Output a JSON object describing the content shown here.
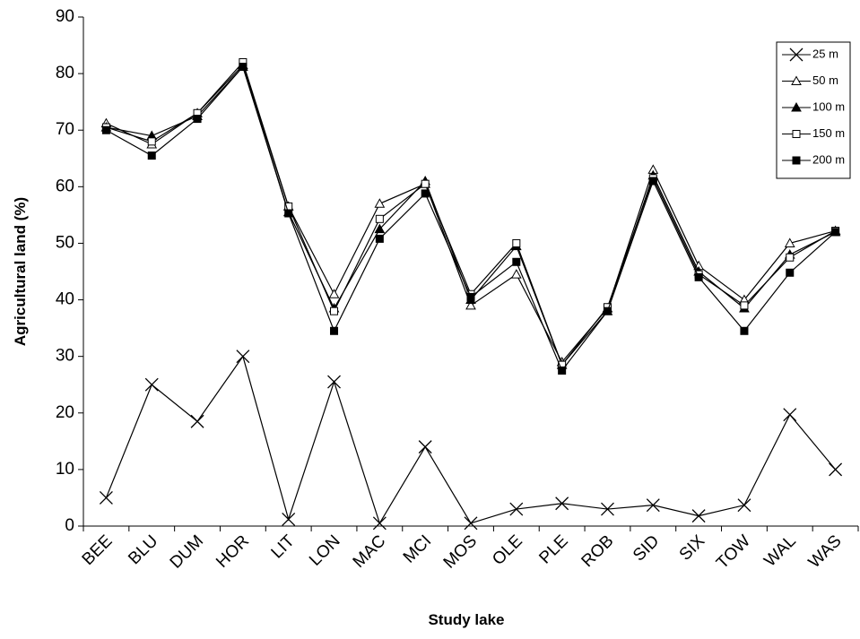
{
  "chart_data": {
    "type": "line",
    "x_label": "Study lake",
    "y_label": "Agricultural land (%)",
    "categories": [
      "BEE",
      "BLU",
      "DUM",
      "HOR",
      "LIT",
      "LON",
      "MAC",
      "MCI",
      "MOS",
      "OLE",
      "PLE",
      "ROB",
      "SID",
      "SIX",
      "TOW",
      "WAL",
      "WAS"
    ],
    "ylim": [
      0,
      90
    ],
    "yticks": [
      0,
      10,
      20,
      30,
      40,
      50,
      60,
      70,
      80,
      90
    ],
    "grid": false,
    "legend": "top-right",
    "series": [
      {
        "name": "25 m",
        "color": "#000000",
        "marker": "x",
        "values": [
          5,
          25,
          18.5,
          30,
          1.2,
          25.5,
          0.5,
          14,
          0.5,
          3,
          4,
          3,
          3.7,
          1.8,
          3.7,
          19.7,
          10
        ]
      },
      {
        "name": "50 m",
        "color": "#000000",
        "marker": "triangle-open",
        "values": [
          71.2,
          67.5,
          73,
          81.5,
          56.5,
          41,
          57,
          60.5,
          39,
          44.5,
          29,
          38.5,
          63,
          46,
          40,
          50,
          52.2
        ]
      },
      {
        "name": "100 m",
        "color": "#000000",
        "marker": "triangle-filled",
        "values": [
          70.5,
          69,
          72.5,
          81.2,
          55.5,
          38.5,
          52.5,
          61,
          40,
          49.5,
          28.5,
          38,
          62,
          45,
          38.5,
          48,
          52
        ]
      },
      {
        "name": "150 m",
        "color": "#000000",
        "marker": "square-open",
        "values": [
          70.5,
          68,
          73,
          82,
          56.5,
          38,
          54.3,
          60.5,
          41,
          50,
          28.5,
          38.7,
          61.5,
          44.5,
          39,
          47.5,
          52.2
        ]
      },
      {
        "name": "200 m",
        "color": "#000000",
        "marker": "square-filled",
        "values": [
          70,
          65.5,
          72,
          81.2,
          55.3,
          34.5,
          50.8,
          58.8,
          40.5,
          46.7,
          27.5,
          38,
          61,
          44,
          34.5,
          44.8,
          52
        ]
      }
    ]
  }
}
